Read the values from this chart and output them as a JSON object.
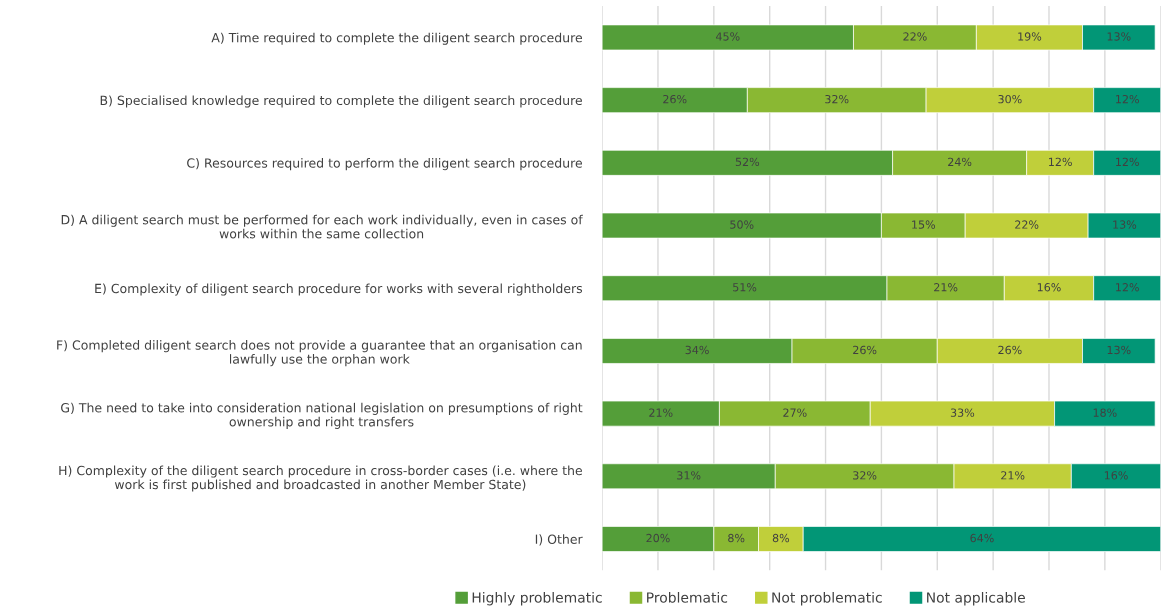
{
  "chart_data": {
    "type": "bar",
    "orientation": "horizontal",
    "stacked": true,
    "categories": [
      "A) Time required to complete the diligent search procedure",
      "B) Specialised knowledge required to complete the diligent search procedure",
      "C) Resources required to perform the diligent search procedure",
      "D) A diligent search must be performed for each work individually, even in cases of\nworks within the same collection",
      "E) Complexity of diligent search procedure for works with several rightholders",
      "F) Completed diligent search does not provide a guarantee that an organisation can\nlawfully use the orphan work",
      "G) The need to take into consideration national legislation on presumptions of right\nownership and right transfers",
      "H) Complexity of the diligent search procedure in cross-border cases (i.e. where the\nwork is first published and broadcasted in another Member State)",
      "I) Other"
    ],
    "series": [
      {
        "name": "Highly problematic",
        "color": "#549e39",
        "values": [
          45,
          26,
          52,
          50,
          51,
          34,
          21,
          31,
          20
        ],
        "value_labels": [
          "45%",
          "26%",
          "52%",
          "50%",
          "51%",
          "34%",
          "21%",
          "31%",
          "20%"
        ]
      },
      {
        "name": "Problematic",
        "color": "#8ab833",
        "values": [
          22,
          32,
          24,
          15,
          21,
          26,
          27,
          32,
          8
        ],
        "value_labels": [
          "22%",
          "32%",
          "24%",
          "15%",
          "21%",
          "26%",
          "27%",
          "32%",
          "8%"
        ]
      },
      {
        "name": "Not problematic",
        "color": "#c0cf3a",
        "values": [
          19,
          30,
          12,
          22,
          16,
          26,
          33,
          21,
          8
        ],
        "value_labels": [
          "19%",
          "30%",
          "12%",
          "22%",
          "16%",
          "26%",
          "33%",
          "21%",
          "8%"
        ]
      },
      {
        "name": "Not applicable",
        "color": "#029676",
        "values": [
          13,
          12,
          12,
          13,
          12,
          13,
          18,
          16,
          64
        ],
        "value_labels": [
          "13%",
          "12%",
          "12%",
          "13%",
          "12%",
          "13%",
          "18%",
          "16%",
          "64%"
        ]
      }
    ],
    "xlim": [
      0,
      100
    ],
    "xticks": [
      {
        "value": 0,
        "label": null
      },
      {
        "value": 10,
        "label": null
      },
      {
        "value": 20,
        "label": null
      },
      {
        "value": 30,
        "label": null
      },
      {
        "value": 40,
        "label": null
      },
      {
        "value": 50,
        "label": null
      },
      {
        "value": 60,
        "label": null
      },
      {
        "value": 70,
        "label": null
      },
      {
        "value": 80,
        "label": null
      },
      {
        "value": 90,
        "label": null
      },
      {
        "value": 100,
        "label": null
      }
    ],
    "tick_labels": "y",
    "grid": "x",
    "legend": "bottom"
  }
}
